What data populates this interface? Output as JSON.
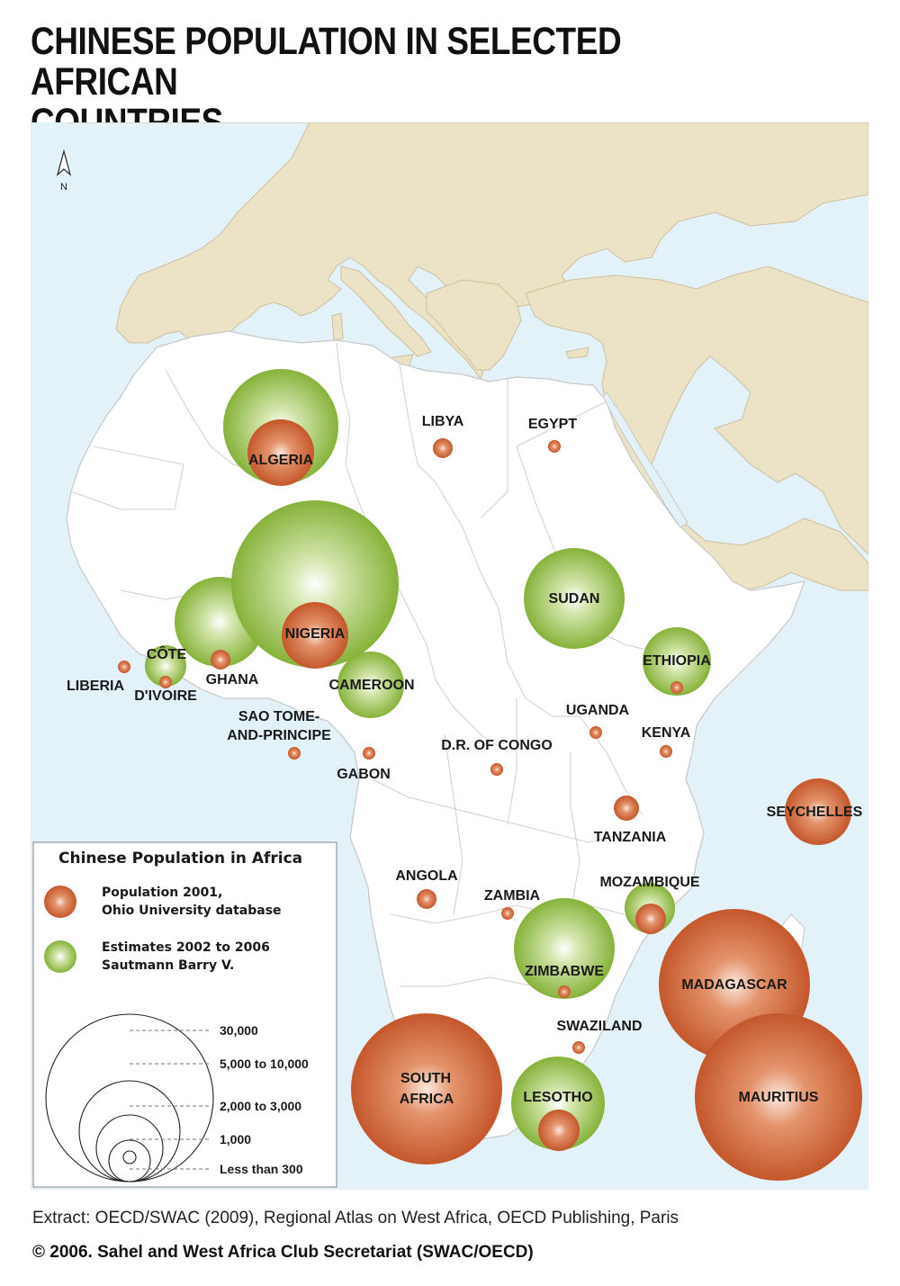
{
  "title_line1": "CHINESE POPULATION IN SELECTED AFRICAN",
  "title_line2": "COUNTRIES",
  "north_label": "N",
  "colors": {
    "sea": "#e3f1f9",
    "land_europe_asia": "#ece3c6",
    "africa": "#ffffff",
    "border": "#c7c7c7",
    "orange": "#c4572b",
    "green": "#86b23a"
  },
  "legend": {
    "title": "Chinese Population in Africa",
    "orange_line1": "Population 2001,",
    "orange_line2": "Ohio University database",
    "green_line1": "Estimates 2002 to 2006",
    "green_line2": "Sautmann Barry V.",
    "scale": [
      "30,000",
      "5,000 to 10,000",
      "2,000 to 3,000",
      "1,000",
      "Less than 300"
    ]
  },
  "countries": {
    "algeria": "ALGERIA",
    "libya": "LIBYA",
    "egypt": "EGYPT",
    "nigeria": "NIGERIA",
    "sudan": "SUDAN",
    "ethiopia": "ETHIOPIA",
    "cote1": "CÔTE",
    "cote2": "D'IVOIRE",
    "liberia": "LIBERIA",
    "ghana": "GHANA",
    "cameroon": "CAMEROON",
    "sao1": "SAO TOME-",
    "sao2": "AND-PRINCIPE",
    "gabon": "GABON",
    "uganda": "UGANDA",
    "kenya": "KENYA",
    "drc": "D.R. OF CONGO",
    "tanzania": "TANZANIA",
    "seychelles": "SEYCHELLES",
    "angola": "ANGOLA",
    "zambia": "ZAMBIA",
    "mozambique": "MOZAMBIQUE",
    "zimbabwe": "ZIMBABWE",
    "madagascar": "MADAGASCAR",
    "swaziland": "SWAZILAND",
    "sa1": "SOUTH",
    "sa2": "AFRICA",
    "lesotho": "LESOTHO",
    "mauritius": "MAURITIUS"
  },
  "footer": {
    "source": "Extract: OECD/SWAC (2009), Regional Atlas on West Africa, OECD Publishing, Paris",
    "copyright": "© 2006. Sahel and West Africa Club Secretariat (SWAC/OECD)"
  }
}
